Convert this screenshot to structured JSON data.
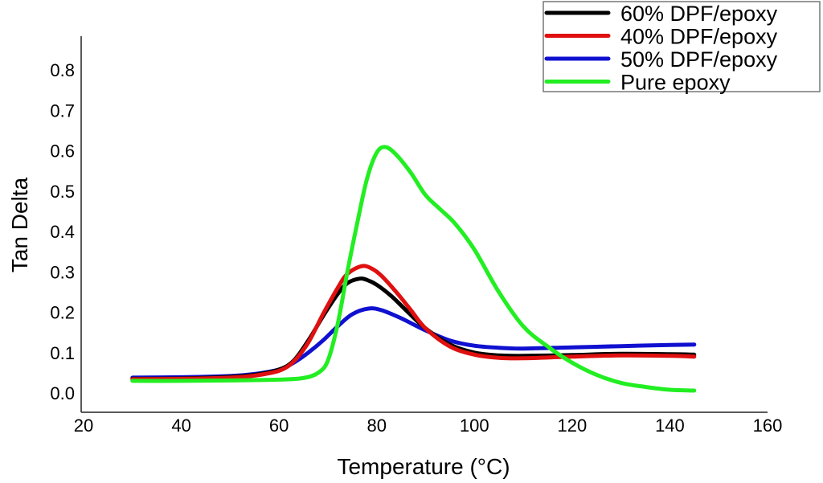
{
  "chart_data": {
    "type": "line",
    "title": "",
    "xlabel": "Temperature (°C)",
    "ylabel": "Tan Delta",
    "xlim": [
      20,
      160
    ],
    "ylim": [
      -0.045,
      0.88
    ],
    "xticks": [
      20,
      40,
      60,
      80,
      100,
      120,
      140,
      160
    ],
    "xtick_labels": [
      "20",
      "40",
      "60",
      "80",
      "100",
      "120",
      "140",
      "160"
    ],
    "yticks": [
      0.0,
      0.1,
      0.2,
      0.3,
      0.4,
      0.5,
      0.6,
      0.7,
      0.8
    ],
    "ytick_labels": [
      "0.0",
      "0.1",
      "0.2",
      "0.3",
      "0.4",
      "0.5",
      "0.6",
      "0.7",
      "0.8"
    ],
    "grid": false,
    "legend_position": "top-right",
    "series": [
      {
        "name": "60% DPF/epoxy",
        "color": "#000000",
        "x": [
          30,
          40,
          50,
          55,
          60,
          63,
          66,
          69,
          72,
          74,
          76.4,
          78,
          80,
          83,
          86,
          90,
          95,
          100,
          105,
          110,
          120,
          130,
          140,
          145
        ],
        "y": [
          0.035,
          0.036,
          0.04,
          0.045,
          0.058,
          0.08,
          0.13,
          0.19,
          0.245,
          0.272,
          0.283,
          0.28,
          0.268,
          0.24,
          0.205,
          0.16,
          0.12,
          0.1,
          0.093,
          0.092,
          0.094,
          0.097,
          0.096,
          0.095
        ]
      },
      {
        "name": "40% DPF/epoxy",
        "color": "#e01010",
        "x": [
          30,
          40,
          50,
          55,
          60,
          63,
          66,
          69,
          72,
          74,
          76.9,
          79,
          81,
          84,
          87,
          90,
          95,
          100,
          105,
          110,
          120,
          130,
          140,
          145
        ],
        "y": [
          0.034,
          0.035,
          0.038,
          0.043,
          0.055,
          0.078,
          0.125,
          0.195,
          0.26,
          0.295,
          0.314,
          0.308,
          0.29,
          0.25,
          0.205,
          0.16,
          0.115,
          0.095,
          0.087,
          0.086,
          0.09,
          0.093,
          0.092,
          0.09
        ]
      },
      {
        "name": "50% DPF/epoxy",
        "color": "#1010d0",
        "x": [
          30,
          40,
          50,
          55,
          60,
          63,
          66,
          69,
          72,
          75,
          78.3,
          81,
          85,
          90,
          95,
          100,
          105,
          110,
          120,
          130,
          140,
          145
        ],
        "y": [
          0.038,
          0.039,
          0.042,
          0.047,
          0.058,
          0.075,
          0.1,
          0.13,
          0.165,
          0.195,
          0.209,
          0.205,
          0.185,
          0.155,
          0.13,
          0.117,
          0.112,
          0.11,
          0.113,
          0.116,
          0.119,
          0.12
        ]
      },
      {
        "name": "Pure epoxy",
        "color": "#22ee22",
        "x": [
          30,
          40,
          50,
          60,
          65,
          68,
          70,
          72,
          74,
          76,
          78,
          80,
          81.8,
          84,
          87,
          90,
          93,
          96,
          100,
          105,
          110,
          115,
          120,
          125,
          130,
          135,
          140,
          145
        ],
        "y": [
          0.03,
          0.03,
          0.031,
          0.033,
          0.037,
          0.05,
          0.08,
          0.17,
          0.3,
          0.42,
          0.53,
          0.595,
          0.609,
          0.59,
          0.545,
          0.49,
          0.455,
          0.42,
          0.355,
          0.25,
          0.165,
          0.115,
          0.075,
          0.045,
          0.025,
          0.015,
          0.008,
          0.006
        ]
      }
    ]
  }
}
